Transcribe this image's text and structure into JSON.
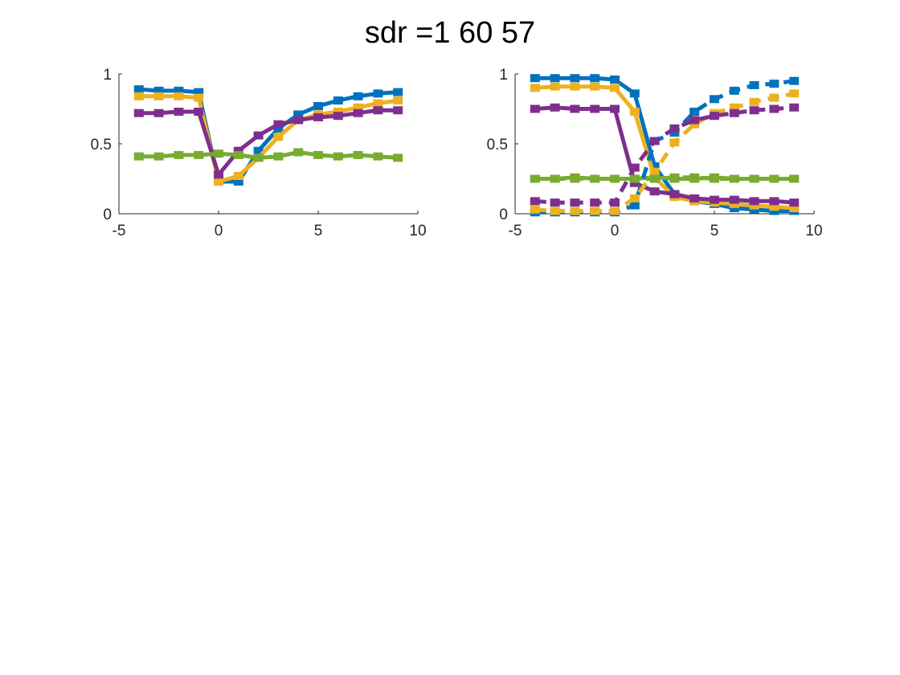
{
  "figure": {
    "title": "sdr =1  60  57"
  },
  "chart_data": [
    {
      "type": "line",
      "title": "",
      "xlabel": "",
      "ylabel": "",
      "xlim": [
        -5,
        10
      ],
      "ylim": [
        0,
        1
      ],
      "xticks": [
        -5,
        0,
        5,
        10
      ],
      "xtick_labels": [
        "-5",
        "0",
        "5",
        "10"
      ],
      "yticks": [
        0,
        0.5,
        1
      ],
      "ytick_labels": [
        "0",
        "0.5",
        "1"
      ],
      "grid": false,
      "box": false,
      "x": [
        -4,
        -3,
        -2,
        -1,
        0,
        1,
        2,
        3,
        4,
        5,
        6,
        7,
        8,
        9
      ],
      "series": [
        {
          "color": "#0072BD",
          "style": "solid",
          "values": [
            0.89,
            0.88,
            0.88,
            0.87,
            0.23,
            0.23,
            0.45,
            0.61,
            0.71,
            0.77,
            0.81,
            0.84,
            0.86,
            0.87
          ]
        },
        {
          "color": "#EDB120",
          "style": "solid",
          "values": [
            0.84,
            0.84,
            0.84,
            0.83,
            0.23,
            0.27,
            0.4,
            0.55,
            0.67,
            0.71,
            0.73,
            0.76,
            0.79,
            0.81
          ]
        },
        {
          "color": "#7E2F8E",
          "style": "solid",
          "values": [
            0.72,
            0.72,
            0.73,
            0.73,
            0.28,
            0.45,
            0.56,
            0.64,
            0.67,
            0.69,
            0.7,
            0.72,
            0.74,
            0.74
          ]
        },
        {
          "color": "#77AC30",
          "style": "solid",
          "values": [
            0.41,
            0.41,
            0.42,
            0.42,
            0.43,
            0.42,
            0.4,
            0.41,
            0.44,
            0.42,
            0.41,
            0.42,
            0.41,
            0.4
          ]
        }
      ]
    },
    {
      "type": "line",
      "title": "",
      "xlabel": "",
      "ylabel": "",
      "xlim": [
        -5,
        10
      ],
      "ylim": [
        0,
        1
      ],
      "xticks": [
        -5,
        0,
        5,
        10
      ],
      "xtick_labels": [
        "-5",
        "0",
        "5",
        "10"
      ],
      "yticks": [
        0,
        0.5,
        1
      ],
      "ytick_labels": [
        "0",
        "0.5",
        "1"
      ],
      "grid": false,
      "box": false,
      "x": [
        -4,
        -3,
        -2,
        -1,
        0,
        1,
        2,
        3,
        4,
        5,
        6,
        7,
        8,
        9
      ],
      "series": [
        {
          "color": "#0072BD",
          "style": "solid",
          "values": [
            0.97,
            0.97,
            0.97,
            0.97,
            0.96,
            0.86,
            0.34,
            0.14,
            0.09,
            0.07,
            0.04,
            0.03,
            0.02,
            0.02
          ]
        },
        {
          "color": "#EDB120",
          "style": "solid",
          "values": [
            0.9,
            0.91,
            0.91,
            0.91,
            0.9,
            0.73,
            0.26,
            0.12,
            0.09,
            0.08,
            0.07,
            0.06,
            0.05,
            0.04
          ]
        },
        {
          "color": "#7E2F8E",
          "style": "solid",
          "values": [
            0.75,
            0.76,
            0.75,
            0.75,
            0.75,
            0.22,
            0.16,
            0.14,
            0.11,
            0.1,
            0.1,
            0.09,
            0.09,
            0.08
          ]
        },
        {
          "color": "#77AC30",
          "style": "solid",
          "values": [
            0.25,
            0.25,
            0.26,
            0.25,
            0.25,
            0.25,
            0.26,
            0.25,
            0.25,
            0.26,
            0.25,
            0.25,
            0.25,
            0.25
          ]
        },
        {
          "color": "#0072BD",
          "style": "dashed",
          "values": [
            0.01,
            0.01,
            0.01,
            0.01,
            0.01,
            0.06,
            0.52,
            0.58,
            0.73,
            0.82,
            0.88,
            0.92,
            0.93,
            0.95
          ]
        },
        {
          "color": "#EDB120",
          "style": "dashed",
          "values": [
            0.03,
            0.02,
            0.02,
            0.02,
            0.02,
            0.11,
            0.3,
            0.51,
            0.64,
            0.72,
            0.76,
            0.8,
            0.83,
            0.86
          ]
        },
        {
          "color": "#7E2F8E",
          "style": "dashed",
          "values": [
            0.09,
            0.08,
            0.08,
            0.08,
            0.08,
            0.33,
            0.52,
            0.61,
            0.67,
            0.7,
            0.72,
            0.74,
            0.75,
            0.76
          ]
        },
        {
          "color": "#77AC30",
          "style": "dashed",
          "values": [
            0.25,
            0.25,
            0.25,
            0.25,
            0.25,
            0.25,
            0.25,
            0.26,
            0.26,
            0.25,
            0.25,
            0.25,
            0.25,
            0.25
          ]
        }
      ]
    }
  ]
}
